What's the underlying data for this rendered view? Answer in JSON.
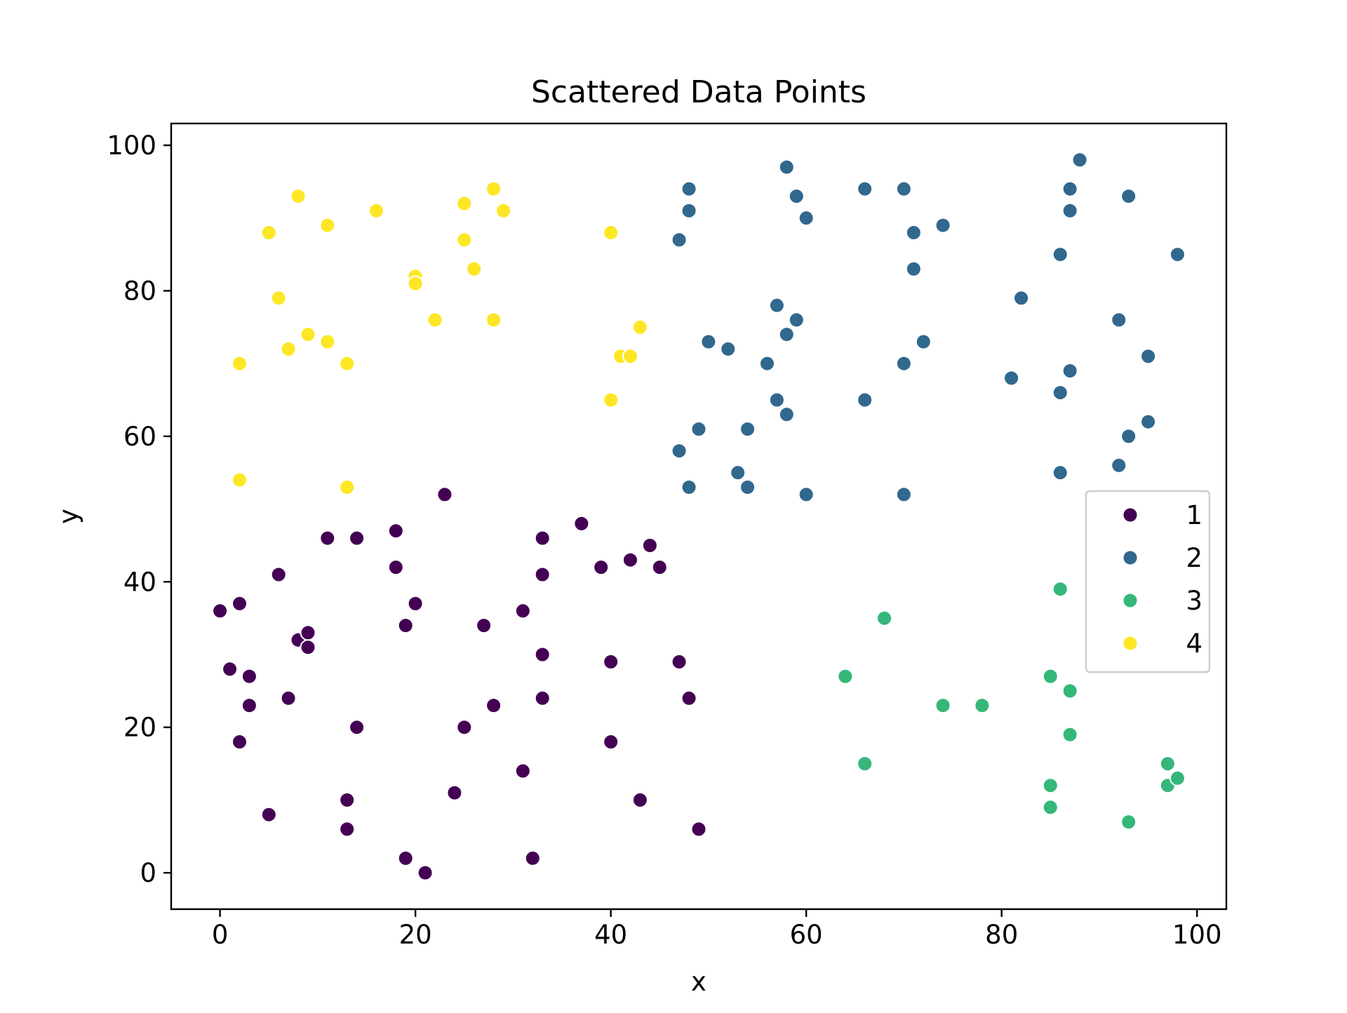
{
  "chart_data": {
    "type": "scatter",
    "title": "Scattered Data Points",
    "xlabel": "x",
    "ylabel": "y",
    "xlim": [
      -5,
      103
    ],
    "ylim": [
      -5,
      103
    ],
    "xticks": [
      "0",
      "20",
      "40",
      "60",
      "80",
      "100"
    ],
    "yticks": [
      "0",
      "20",
      "40",
      "60",
      "80",
      "100"
    ],
    "grid": false,
    "legend_position": "center-right",
    "series": [
      {
        "name": "1",
        "color": "#440154",
        "points": [
          [
            0,
            36
          ],
          [
            1,
            28
          ],
          [
            2,
            37
          ],
          [
            2,
            18
          ],
          [
            3,
            27
          ],
          [
            3,
            23
          ],
          [
            5,
            8
          ],
          [
            6,
            41
          ],
          [
            7,
            24
          ],
          [
            8,
            32
          ],
          [
            9,
            33
          ],
          [
            9,
            31
          ],
          [
            11,
            46
          ],
          [
            13,
            10
          ],
          [
            13,
            6
          ],
          [
            14,
            46
          ],
          [
            14,
            20
          ],
          [
            18,
            47
          ],
          [
            18,
            42
          ],
          [
            19,
            34
          ],
          [
            19,
            2
          ],
          [
            20,
            37
          ],
          [
            21,
            0
          ],
          [
            23,
            52
          ],
          [
            24,
            11
          ],
          [
            25,
            20
          ],
          [
            27,
            34
          ],
          [
            28,
            23
          ],
          [
            31,
            36
          ],
          [
            31,
            14
          ],
          [
            32,
            2
          ],
          [
            33,
            46
          ],
          [
            33,
            41
          ],
          [
            33,
            30
          ],
          [
            33,
            24
          ],
          [
            37,
            48
          ],
          [
            39,
            42
          ],
          [
            40,
            29
          ],
          [
            40,
            18
          ],
          [
            42,
            43
          ],
          [
            43,
            10
          ],
          [
            44,
            45
          ],
          [
            45,
            42
          ],
          [
            47,
            29
          ],
          [
            48,
            24
          ],
          [
            49,
            6
          ]
        ]
      },
      {
        "name": "2",
        "color": "#31688e",
        "points": [
          [
            47,
            87
          ],
          [
            47,
            58
          ],
          [
            48,
            94
          ],
          [
            48,
            91
          ],
          [
            48,
            53
          ],
          [
            49,
            61
          ],
          [
            50,
            73
          ],
          [
            52,
            72
          ],
          [
            53,
            55
          ],
          [
            54,
            61
          ],
          [
            54,
            53
          ],
          [
            56,
            70
          ],
          [
            57,
            78
          ],
          [
            57,
            65
          ],
          [
            58,
            97
          ],
          [
            58,
            74
          ],
          [
            58,
            63
          ],
          [
            59,
            93
          ],
          [
            59,
            76
          ],
          [
            60,
            90
          ],
          [
            60,
            52
          ],
          [
            66,
            94
          ],
          [
            66,
            65
          ],
          [
            70,
            94
          ],
          [
            70,
            70
          ],
          [
            70,
            52
          ],
          [
            71,
            88
          ],
          [
            71,
            83
          ],
          [
            72,
            73
          ],
          [
            74,
            89
          ],
          [
            81,
            68
          ],
          [
            82,
            79
          ],
          [
            86,
            85
          ],
          [
            86,
            66
          ],
          [
            86,
            55
          ],
          [
            87,
            94
          ],
          [
            87,
            91
          ],
          [
            87,
            69
          ],
          [
            88,
            98
          ],
          [
            92,
            76
          ],
          [
            92,
            56
          ],
          [
            93,
            93
          ],
          [
            93,
            60
          ],
          [
            95,
            71
          ],
          [
            95,
            62
          ],
          [
            98,
            85
          ]
        ]
      },
      {
        "name": "3",
        "color": "#35b779",
        "points": [
          [
            64,
            27
          ],
          [
            66,
            15
          ],
          [
            68,
            35
          ],
          [
            74,
            23
          ],
          [
            78,
            23
          ],
          [
            85,
            27
          ],
          [
            85,
            12
          ],
          [
            85,
            9
          ],
          [
            86,
            39
          ],
          [
            87,
            25
          ],
          [
            87,
            19
          ],
          [
            93,
            7
          ],
          [
            97,
            15
          ],
          [
            97,
            12
          ],
          [
            98,
            13
          ]
        ]
      },
      {
        "name": "4",
        "color": "#fde725",
        "points": [
          [
            2,
            70
          ],
          [
            2,
            54
          ],
          [
            5,
            88
          ],
          [
            6,
            79
          ],
          [
            7,
            72
          ],
          [
            8,
            93
          ],
          [
            9,
            74
          ],
          [
            11,
            89
          ],
          [
            11,
            73
          ],
          [
            13,
            70
          ],
          [
            13,
            53
          ],
          [
            16,
            91
          ],
          [
            20,
            82
          ],
          [
            20,
            81
          ],
          [
            22,
            76
          ],
          [
            25,
            92
          ],
          [
            25,
            87
          ],
          [
            26,
            83
          ],
          [
            28,
            94
          ],
          [
            28,
            76
          ],
          [
            29,
            91
          ],
          [
            40,
            88
          ],
          [
            40,
            65
          ],
          [
            41,
            71
          ],
          [
            42,
            71
          ],
          [
            43,
            75
          ]
        ]
      }
    ]
  }
}
